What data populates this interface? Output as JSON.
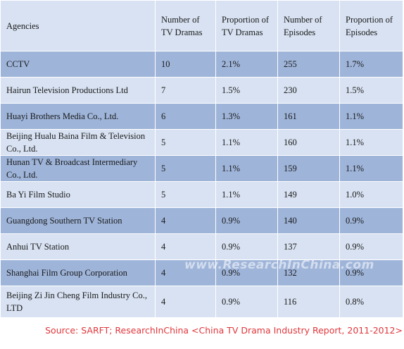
{
  "chart_data": {
    "type": "table",
    "columns": [
      "Agencies",
      "Number of TV Dramas",
      "Proportion of TV Dramas",
      "Number of Episodes",
      "Proportion of Episodes"
    ],
    "rows": [
      [
        "CCTV",
        "10",
        "2.1%",
        "255",
        "1.7%"
      ],
      [
        "Hairun Television Productions Ltd",
        "7",
        "1.5%",
        "230",
        "1.5%"
      ],
      [
        "Huayi Brothers Media Co., Ltd.",
        "6",
        "1.3%",
        "161",
        "1.1%"
      ],
      [
        "Beijing Hualu Baina Film & Television Co., Ltd.",
        "5",
        "1.1%",
        "160",
        "1.1%"
      ],
      [
        "Hunan TV & Broadcast Intermediary Co., Ltd.",
        "5",
        "1.1%",
        "159",
        "1.1%"
      ],
      [
        "Ba Yi Film Studio",
        "5",
        "1.1%",
        "149",
        "1.0%"
      ],
      [
        "Guangdong Southern TV Station",
        "4",
        "0.9%",
        "140",
        "0.9%"
      ],
      [
        "Anhui TV Station",
        "4",
        "0.9%",
        "137",
        "0.9%"
      ],
      [
        "Shanghai Film Group Corporation",
        "4",
        "0.9%",
        "132",
        "0.9%"
      ],
      [
        "Beijing Zi Jin Cheng Film Industry Co., LTD",
        "4",
        "0.9%",
        "116",
        "0.8%"
      ]
    ]
  },
  "watermark": "www.ResearchInChina.com",
  "source": "Source: SARFT; ResearchInChina <China TV Drama Industry Report, 2011-2012>",
  "colors": {
    "header_bg": "#d8e2f2",
    "row_dark": "#9eb4d9",
    "row_light": "#d8e2f2",
    "source_text": "#e0363b"
  }
}
